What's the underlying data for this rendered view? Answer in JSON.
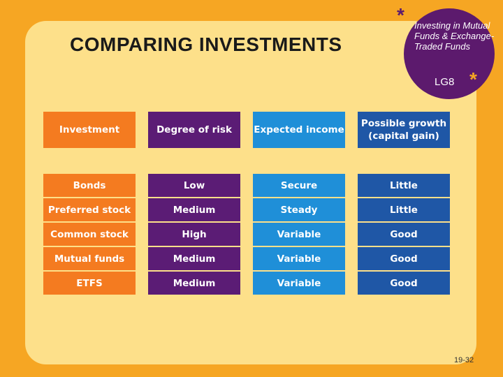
{
  "slide": {
    "title": "COMPARING INVESTMENTS",
    "badge_text": "Investing in Mutual Funds & Exchange-Traded Funds",
    "badge_code": "LG8",
    "star_glyph": "*",
    "page_number": "19-32"
  },
  "table": {
    "headers": [
      "Investment",
      "Degree of risk",
      "Expected income",
      "Possible growth (capital gain)"
    ],
    "rows": [
      [
        "Bonds",
        "Low",
        "Secure",
        "Little"
      ],
      [
        "Preferred stock",
        "Medium",
        "Steady",
        "Little"
      ],
      [
        "Common stock",
        "High",
        "Variable",
        "Good"
      ],
      [
        "Mutual funds",
        "Medium",
        "Variable",
        "Good"
      ],
      [
        "ETFS",
        "Medium",
        "Variable",
        "Good"
      ]
    ]
  },
  "colors": {
    "background": "#f6a623",
    "panel": "#fde08a",
    "badge": "#5c1a6d",
    "col_investment": "#f47b20",
    "col_risk": "#5b1c75",
    "col_income": "#1f8fd8",
    "col_growth": "#1f57a6"
  }
}
